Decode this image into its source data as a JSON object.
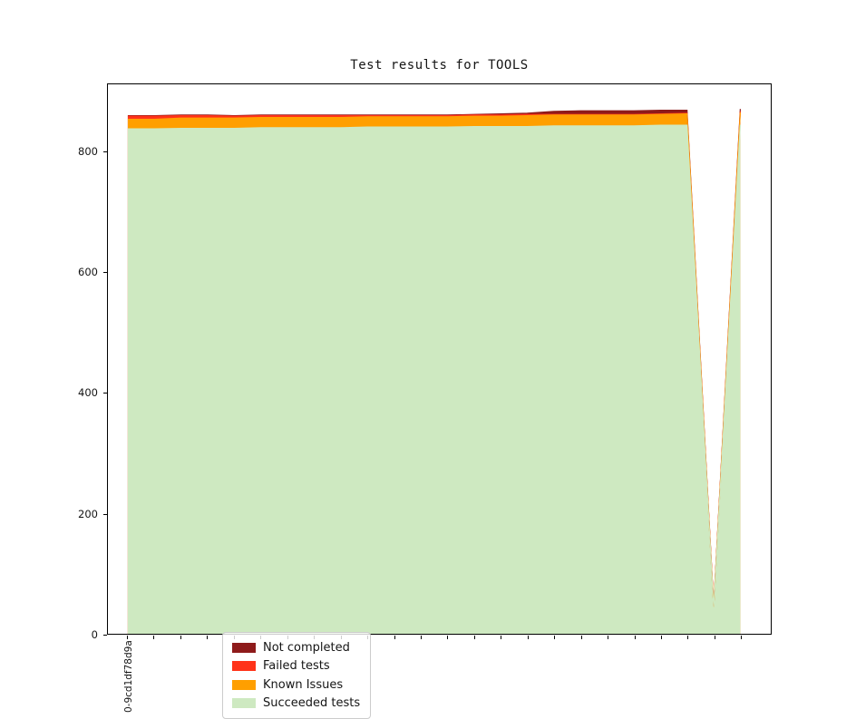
{
  "chart_data": {
    "type": "area",
    "stacked": true,
    "title": "Test results for TOOLS",
    "xlabel": "",
    "ylabel": "",
    "grid": false,
    "ylim": [
      0,
      912
    ],
    "yticks": [
      0,
      200,
      400,
      600,
      800
    ],
    "categories": [
      "0-9cd1df78d9a",
      "",
      "",
      "",
      "",
      "",
      "",
      "",
      "",
      "",
      "",
      "",
      "",
      "",
      "",
      "",
      "",
      "",
      "",
      "",
      "",
      "",
      "",
      ""
    ],
    "series": [
      {
        "name": "Succeeded tests",
        "color": "#CEE9C1",
        "values": [
          838,
          838,
          839,
          839,
          839,
          840,
          840,
          840,
          840,
          841,
          841,
          841,
          841,
          842,
          842,
          842,
          843,
          843,
          843,
          843,
          844,
          844,
          42,
          845
        ]
      },
      {
        "name": "Known Issues",
        "color": "#FF9F00",
        "values": [
          16,
          16,
          17,
          17,
          17,
          17,
          17,
          17,
          17,
          17,
          17,
          17,
          17,
          17,
          17,
          18,
          18,
          18,
          18,
          18,
          18,
          19,
          2,
          20
        ]
      },
      {
        "name": "Failed tests",
        "color": "#FF3319",
        "values": [
          5,
          5,
          4,
          4,
          3,
          3,
          3,
          3,
          3,
          2,
          2,
          2,
          2,
          2,
          2,
          2,
          1,
          1,
          1,
          1,
          1,
          1,
          1,
          2
        ]
      },
      {
        "name": "Not completed",
        "color": "#8E1B1B",
        "values": [
          1,
          1,
          1,
          1,
          1,
          1,
          1,
          1,
          1,
          1,
          1,
          1,
          1,
          1,
          2,
          2,
          5,
          6,
          6,
          6,
          6,
          5,
          1,
          4
        ]
      }
    ],
    "legend": {
      "position": "lower left",
      "entries": [
        "Not completed",
        "Failed tests",
        "Known Issues",
        "Succeeded tests"
      ]
    }
  }
}
